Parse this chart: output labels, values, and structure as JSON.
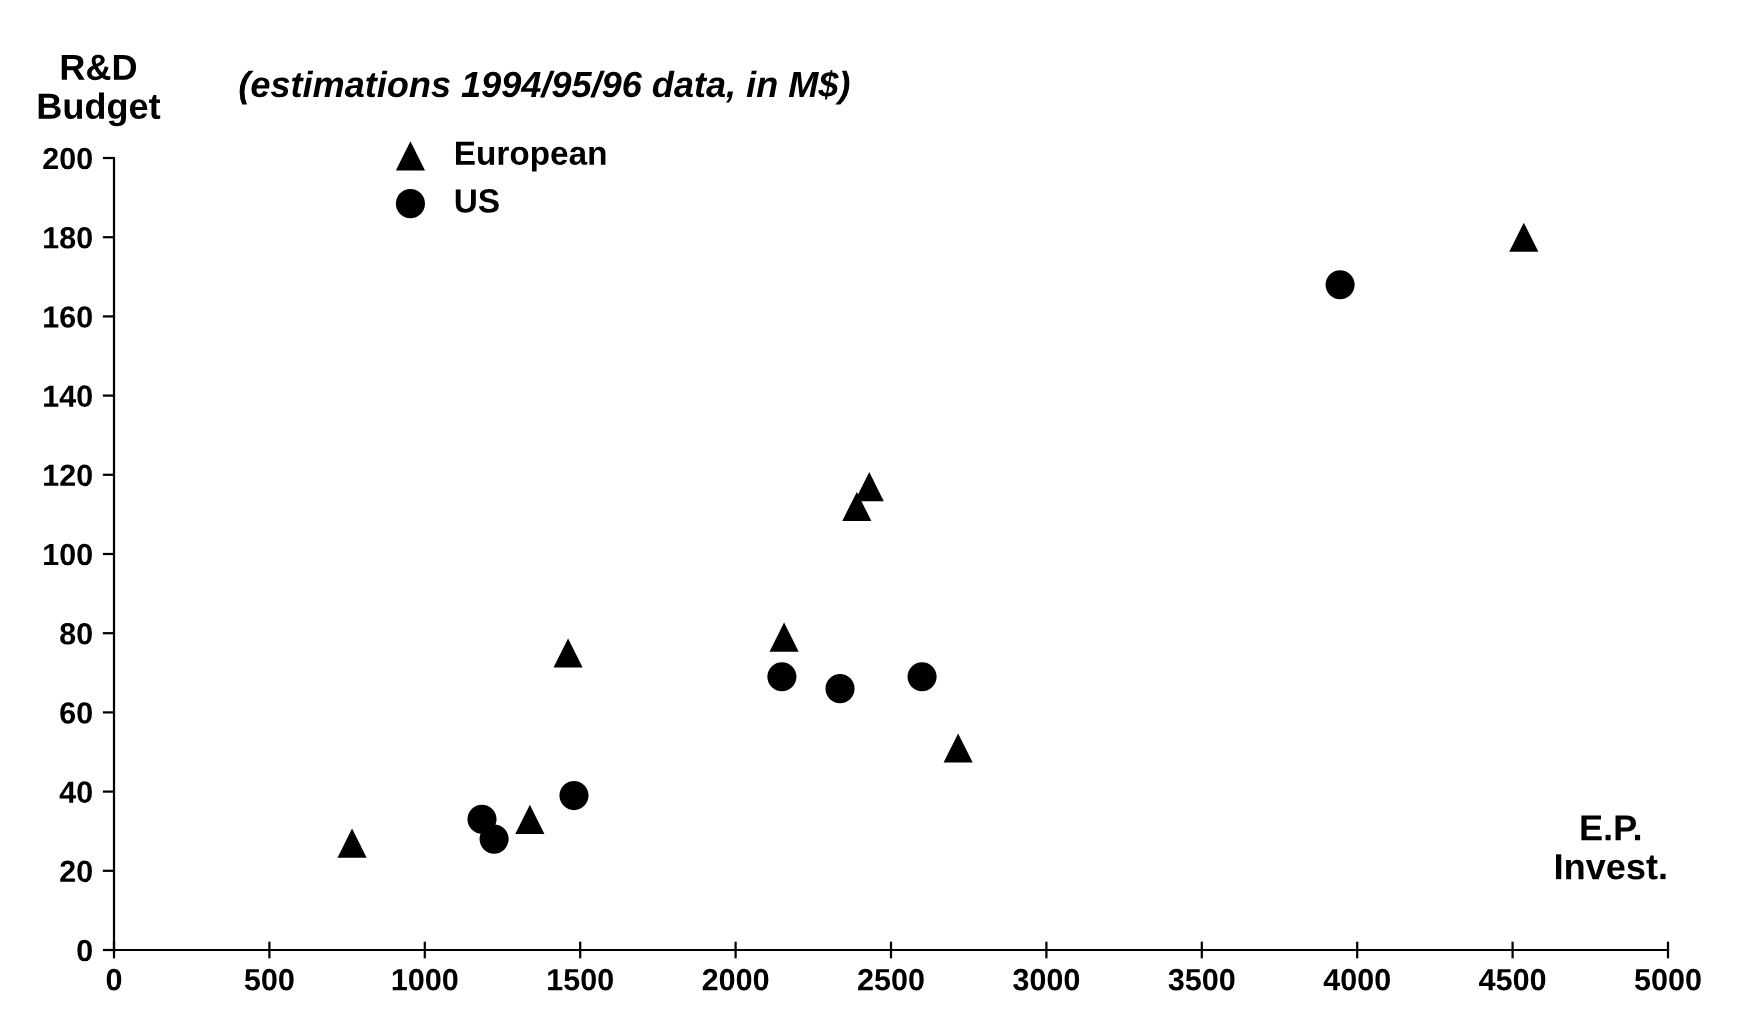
{
  "chart_data": {
    "type": "scatter",
    "title": "(estimations 1994/95/96 data, in M$)",
    "xlabel": "E.P.\nInvest.",
    "ylabel": "R&D\nBudget",
    "xlim": [
      0,
      5000
    ],
    "xticks": [
      0,
      500,
      1000,
      1500,
      2000,
      2500,
      3000,
      3500,
      4000,
      4500,
      5000
    ],
    "ylim": [
      0,
      200
    ],
    "yticks": [
      0,
      20,
      40,
      60,
      80,
      100,
      120,
      140,
      160,
      180,
      200
    ],
    "grid": false,
    "legend": "top left",
    "series": [
      {
        "name": "European",
        "color": "#000000",
        "marker": "triangle",
        "x": [
          766,
          1338,
          1461,
          2156,
          2716,
          4536,
          2390,
          2430
        ],
        "values": [
          27,
          33,
          75,
          79,
          51,
          180,
          112,
          117
        ]
      },
      {
        "name": "US",
        "color": "#000000",
        "marker": "circle",
        "x": [
          1184,
          1223,
          1480,
          2149,
          2336,
          2600,
          3945
        ],
        "values": [
          33,
          28,
          39,
          69,
          66,
          69,
          168
        ]
      }
    ]
  }
}
